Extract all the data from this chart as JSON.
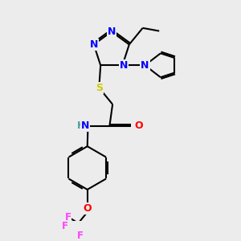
{
  "bg_color": "#ececec",
  "bond_color": "#000000",
  "bond_width": 1.5,
  "atom_colors": {
    "N": "#0000ff",
    "O": "#ff0000",
    "S": "#cccc00",
    "F": "#ff44ff",
    "C": "#000000",
    "H": "#4a9a9a"
  },
  "font_size": 9,
  "font_size_small": 8.5
}
